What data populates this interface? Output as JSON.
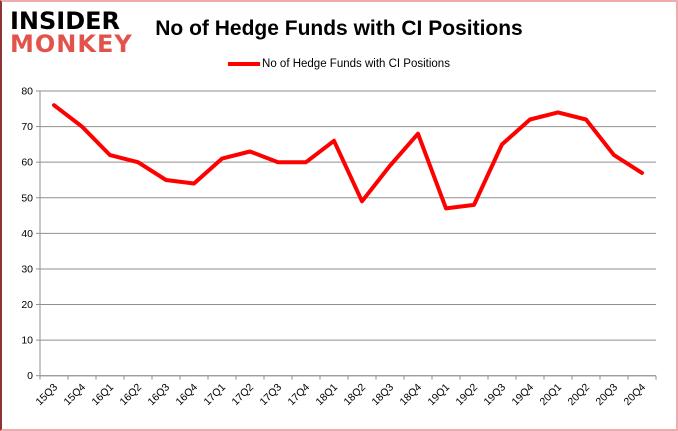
{
  "logo": {
    "line1": "INSIDER",
    "line2": "MONKEY"
  },
  "header": {
    "title": "No of Hedge Funds with CI Positions"
  },
  "legend": {
    "label": "No of Hedge Funds with CI Positions"
  },
  "colors": {
    "series_line": "#ff0000",
    "grid": "#8f8f8f",
    "axis_text": "#000000",
    "background": "#ffffff",
    "frame_border": "#f0acac",
    "frame_border_left": "#8d3535",
    "logo_black": "#000000",
    "logo_red": "#e2544b"
  },
  "chart_data": {
    "type": "line",
    "title": "No of Hedge Funds with CI Positions",
    "categories": [
      "15Q3",
      "15Q4",
      "16Q1",
      "16Q2",
      "16Q3",
      "16Q4",
      "17Q1",
      "17Q2",
      "17Q3",
      "17Q4",
      "18Q1",
      "18Q2",
      "18Q3",
      "18Q4",
      "19Q1",
      "19Q2",
      "19Q3",
      "19Q4",
      "20Q1",
      "20Q2",
      "20Q3",
      "20Q4"
    ],
    "series": [
      {
        "name": "No of Hedge Funds with CI Positions",
        "color": "#ff0000",
        "values": [
          76,
          70,
          62,
          60,
          55,
          54,
          61,
          63,
          60,
          60,
          66,
          49,
          59,
          68,
          47,
          48,
          65,
          72,
          74,
          72,
          62,
          57
        ]
      }
    ],
    "xlabel": "",
    "ylabel": "",
    "ylim": [
      0,
      80
    ],
    "y_ticks": [
      0,
      10,
      20,
      30,
      40,
      50,
      60,
      70,
      80
    ],
    "grid": true,
    "legend_position": "top-center",
    "x_label_rotation_deg": -45
  }
}
